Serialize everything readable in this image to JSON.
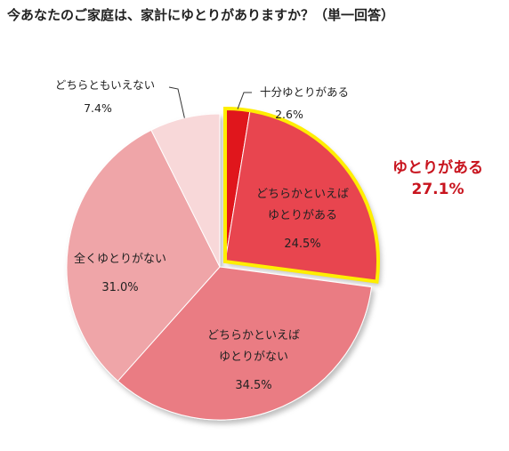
{
  "title": "今あなたのご家庭は、家計にゆとりがありますか？（単一回答）",
  "callout": {
    "label": "ゆとりがある",
    "value": "27.1%"
  },
  "chart_data": {
    "type": "pie",
    "title": "今あなたのご家庭は、家計にゆとりがありますか？（単一回答）",
    "slices": [
      {
        "label": "十分ゆとりがある",
        "value": 2.6,
        "value_label": "2.6%",
        "color": "#e0141e"
      },
      {
        "label": "どちらかといえばゆとりがある",
        "label_lines": [
          "どちらかといえば",
          "ゆとりがある"
        ],
        "value": 24.5,
        "value_label": "24.5%",
        "color": "#e84550"
      },
      {
        "label": "どちらかといえばゆとりがない",
        "label_lines": [
          "どちらかといえば",
          "ゆとりがない"
        ],
        "value": 34.5,
        "value_label": "34.5%",
        "color": "#ea7c83"
      },
      {
        "label": "全くゆとりがない",
        "label_lines": [
          "全くゆとりがない"
        ],
        "value": 31.0,
        "value_label": "31.0%",
        "color": "#efa5a8"
      },
      {
        "label": "どちらともいえない",
        "value": 7.4,
        "value_label": "7.4%",
        "color": "#f8d8d9"
      }
    ],
    "highlight": {
      "slices": [
        0,
        1
      ],
      "color": "#ffee00",
      "label": "ゆとりがある",
      "value": 27.1,
      "value_label": "27.1%"
    }
  }
}
